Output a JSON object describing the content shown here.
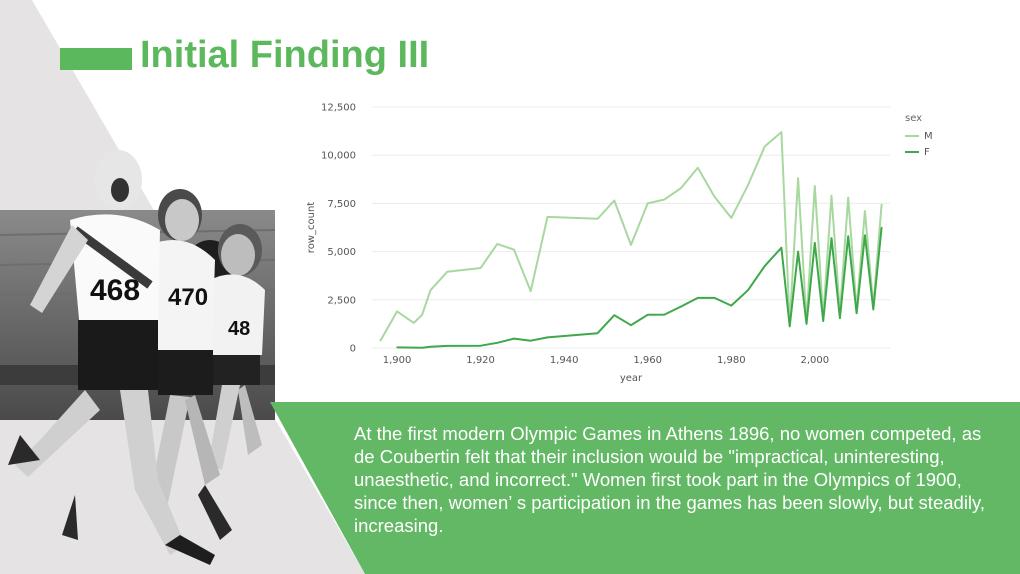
{
  "slide": {
    "title": "Initial Finding III",
    "body_text": "At the first modern Olympic Games in Athens 1896, no women competed, as de Coubertin felt that their inclusion would be \"impractical, uninteresting, unaesthetic, and incorrect.\" Women first took part in the Olympics of 1900, since then, women’ s participation in the games has been slowly, but steadily, increasing.",
    "photo_numbers": [
      "468",
      "470",
      "48"
    ],
    "colors": {
      "accent": "#5cb85c",
      "panel": "#63b866",
      "triangle": "#e5e3e4",
      "series_m": "#a8d8a0",
      "series_f": "#3fa84a"
    }
  },
  "chart_data": {
    "type": "line",
    "xlabel": "year",
    "ylabel": "row_count",
    "xlim": [
      1894,
      2018
    ],
    "ylim": [
      0,
      12500
    ],
    "x_ticks": [
      1900,
      1920,
      1940,
      1960,
      1980,
      2000
    ],
    "x_tick_labels": [
      "1,900",
      "1,920",
      "1,940",
      "1,960",
      "1,980",
      "2,000"
    ],
    "y_ticks": [
      0,
      2500,
      5000,
      7500,
      10000,
      12500
    ],
    "y_tick_labels": [
      "0",
      "2,500",
      "5,000",
      "7,500",
      "10,000",
      "12,500"
    ],
    "grid": "horizontal",
    "legend": {
      "title": "sex",
      "position": "top-right"
    },
    "series": [
      {
        "name": "M",
        "color": "#a8d8a0",
        "x": [
          1896,
          1900,
          1904,
          1906,
          1908,
          1912,
          1920,
          1924,
          1928,
          1932,
          1936,
          1948,
          1952,
          1956,
          1960,
          1964,
          1968,
          1972,
          1976,
          1980,
          1984,
          1988,
          1992,
          1994,
          1996,
          1998,
          2000,
          2002,
          2004,
          2006,
          2008,
          2010,
          2012,
          2014,
          2016
        ],
        "y": [
          380,
          1900,
          1300,
          1720,
          3000,
          3950,
          4150,
          5400,
          5100,
          2950,
          6800,
          6700,
          7650,
          5350,
          7500,
          7700,
          8300,
          9350,
          7850,
          6750,
          8450,
          10450,
          11200,
          1250,
          8800,
          1400,
          8400,
          1600,
          7900,
          1850,
          7800,
          2000,
          7100,
          2200,
          7450
        ]
      },
      {
        "name": "F",
        "color": "#3fa84a",
        "x": [
          1900,
          1904,
          1906,
          1908,
          1912,
          1920,
          1924,
          1928,
          1932,
          1936,
          1948,
          1952,
          1956,
          1960,
          1964,
          1968,
          1972,
          1976,
          1980,
          1984,
          1988,
          1992,
          1994,
          1996,
          1998,
          2000,
          2002,
          2004,
          2006,
          2008,
          2010,
          2012,
          2014,
          2016
        ],
        "y": [
          30,
          20,
          10,
          60,
          110,
          120,
          270,
          490,
          380,
          550,
          770,
          1700,
          1180,
          1720,
          1730,
          2150,
          2600,
          2600,
          2200,
          3000,
          4250,
          5200,
          1120,
          5000,
          1250,
          5450,
          1400,
          5700,
          1550,
          5800,
          1800,
          5850,
          2000,
          6250
        ]
      }
    ]
  }
}
